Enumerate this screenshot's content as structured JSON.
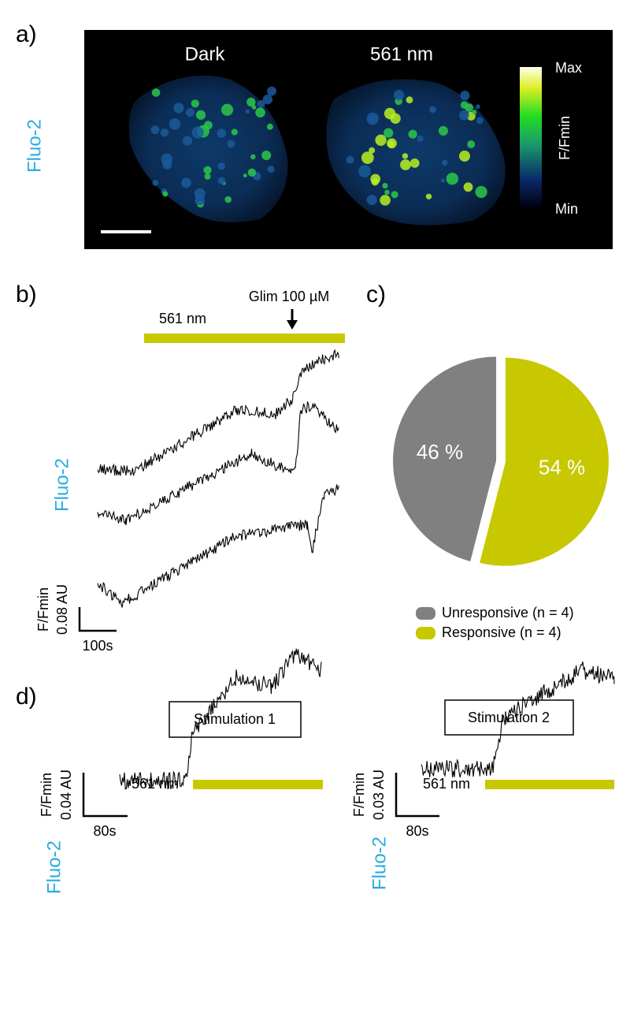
{
  "panels": {
    "a": {
      "label": "a)",
      "left_title": "Dark",
      "right_title": "561 nm",
      "indicator": "Fluo-2",
      "colorbar_max": "Max",
      "colorbar_label": "F/Fmin",
      "colorbar_min": "Min"
    },
    "b": {
      "label": "b)",
      "light": "561 nm",
      "drug": "Glim 100 µM",
      "indicator": "Fluo-2",
      "scale_y_name": "F/Fmin",
      "scale_y": "0.08 AU",
      "scale_x": "100s"
    },
    "c": {
      "label": "c)"
    },
    "d": {
      "label": "d)",
      "stim1": {
        "title": "Stimulation 1",
        "light": "561 nm",
        "indicator": "Fluo-2",
        "scale_y_name": "F/Fmin",
        "scale_y": "0.04 AU",
        "scale_x": "80s"
      },
      "stim2": {
        "title": "Stimulation 2",
        "light": "561 nm",
        "indicator": "Fluo-2",
        "scale_y_name": "F/Fmin",
        "scale_y": "0.03 AU",
        "scale_x": "80s"
      }
    }
  },
  "chart_data": {
    "type": "pie",
    "categories": [
      "Unresponsive (n = 4)",
      "Responsive (n = 4)"
    ],
    "values": [
      46,
      54
    ],
    "value_labels": [
      "46 %",
      "54 %"
    ],
    "colors": [
      "#808080",
      "#c8c800"
    ]
  }
}
